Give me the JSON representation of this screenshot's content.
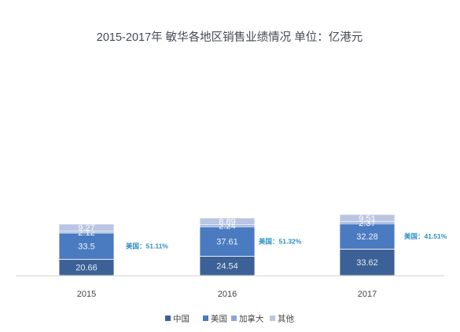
{
  "chart_data": {
    "type": "bar",
    "stacked": true,
    "title": "2015-2017年 敏华各地区销售业绩情况 单位：亿港元",
    "categories": [
      "2015",
      "2016",
      "2017"
    ],
    "series": [
      {
        "name": "中国",
        "values": [
          20.66,
          24.54,
          33.62
        ],
        "color": "#3c6196"
      },
      {
        "name": "美国",
        "values": [
          33.5,
          37.61,
          32.28
        ],
        "color": "#4a7ac0"
      },
      {
        "name": "加拿大",
        "values": [
          2.12,
          2.24,
          2.37
        ],
        "color": "#8ba5d6"
      },
      {
        "name": "其他",
        "values": [
          9.27,
          8.89,
          9.51
        ],
        "color": "#b9c6e3"
      }
    ],
    "annotations": [
      "美国：51.11%",
      "美国：51.32%",
      "美国：41.51%"
    ],
    "annotation_color": "#2a8fc4",
    "legend_position": "bottom",
    "grid": false,
    "ylim": [
      0,
      75
    ]
  }
}
